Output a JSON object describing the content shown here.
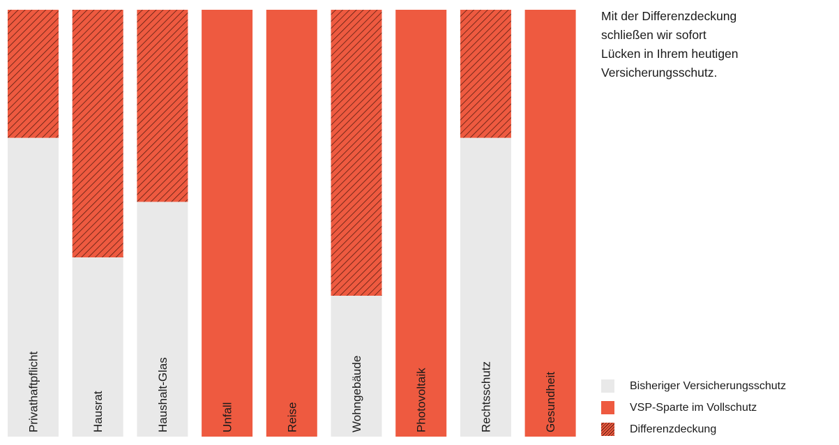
{
  "chart_data": {
    "type": "bar",
    "orientation": "vertical",
    "stacked": true,
    "categories": [
      "Privathaftpflicht",
      "Hausrat",
      "Haushalt-Glas",
      "Unfall",
      "Reise",
      "Wohngebäude",
      "Photovoltaik",
      "Rechtsschutz",
      "Gesundheit"
    ],
    "series": [
      {
        "name": "Bisheriger Versicherungsschutz",
        "color": "#e9e9e9",
        "values": [
          0.7,
          0.42,
          0.55,
          0,
          0,
          0.33,
          0,
          0.7,
          0
        ]
      },
      {
        "name": "VSP-Sparte im Vollschutz",
        "color": "#ee5a40",
        "values": [
          0,
          0,
          0,
          1,
          1,
          0,
          1,
          0,
          1
        ]
      },
      {
        "name": "Differenzdeckung",
        "color": "#ee5a40",
        "pattern": "diagonal-hatch",
        "values": [
          0.3,
          0.58,
          0.45,
          0,
          0,
          0.67,
          0,
          0.3,
          0
        ]
      }
    ],
    "ylim": [
      0,
      1
    ],
    "grid": false,
    "legend_position": "bottom-right"
  },
  "intro_text": "Mit der Differenzdeckung\nschließen wir sofort\nLücken in Ihrem heutigen\nVersicherungsschutz.",
  "legend": [
    {
      "label": "Bisheriger Versicherungsschutz",
      "swatch": "prior"
    },
    {
      "label": "VSP-Sparte im Vollschutz",
      "swatch": "full"
    },
    {
      "label": "Differenzdeckung",
      "swatch": "diff"
    }
  ],
  "colors": {
    "prior": "#e9e9e9",
    "full": "#ee5a40",
    "hatch_line": "#5a1d10"
  }
}
